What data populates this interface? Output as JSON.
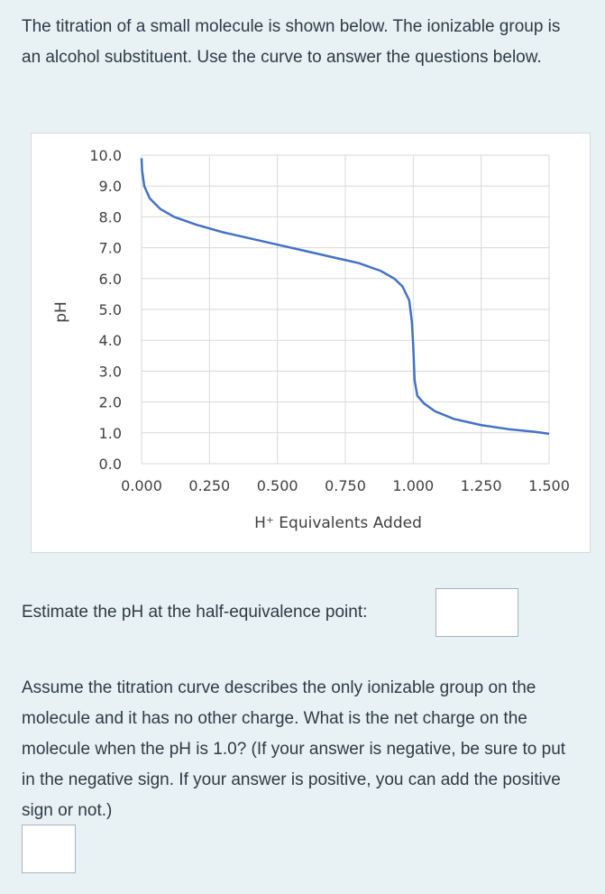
{
  "intro": "The titration of a small molecule is shown below.  The ionizable group is an alcohol substituent.  Use the curve to answer the questions below.",
  "question1": {
    "text": "Estimate the pH at the half-equivalence point:",
    "value": ""
  },
  "question2": {
    "text": "Assume the titration curve describes the only ionizable group on the molecule and it has no other charge.  What is the net charge on the molecule when the pH is 1.0? (If your answer is negative, be sure to put in the negative sign.  If your answer is positive, you can add the positive sign or not.)",
    "value": ""
  },
  "colors": {
    "curve": "#4472c4",
    "grid": "#d9d9d9"
  },
  "chart_data": {
    "type": "line",
    "title": "",
    "xlabel": "H⁺ Equivalents Added",
    "ylabel": "pH",
    "xlim": [
      0.0,
      1.5
    ],
    "ylim": [
      0.0,
      10.0
    ],
    "x_ticks": [
      "0.000",
      "0.250",
      "0.500",
      "0.750",
      "1.000",
      "1.250",
      "1.500"
    ],
    "y_ticks": [
      "0.0",
      "1.0",
      "2.0",
      "3.0",
      "4.0",
      "5.0",
      "6.0",
      "7.0",
      "8.0",
      "9.0",
      "10.0"
    ],
    "grid": true,
    "legend": "none",
    "series": [
      {
        "x": [
          0.0,
          0.002,
          0.01,
          0.03,
          0.07,
          0.12,
          0.2,
          0.3,
          0.4,
          0.5,
          0.6,
          0.7,
          0.8,
          0.88,
          0.93,
          0.96,
          0.985,
          0.995,
          1.0,
          1.005,
          1.015,
          1.04,
          1.08,
          1.15,
          1.25,
          1.35,
          1.45,
          1.5
        ],
        "y": [
          9.9,
          9.5,
          9.0,
          8.6,
          8.25,
          8.0,
          7.75,
          7.5,
          7.3,
          7.1,
          6.9,
          6.7,
          6.5,
          6.25,
          6.0,
          5.75,
          5.3,
          4.6,
          3.8,
          2.7,
          2.2,
          1.95,
          1.7,
          1.45,
          1.25,
          1.12,
          1.03,
          0.97
        ]
      }
    ]
  }
}
